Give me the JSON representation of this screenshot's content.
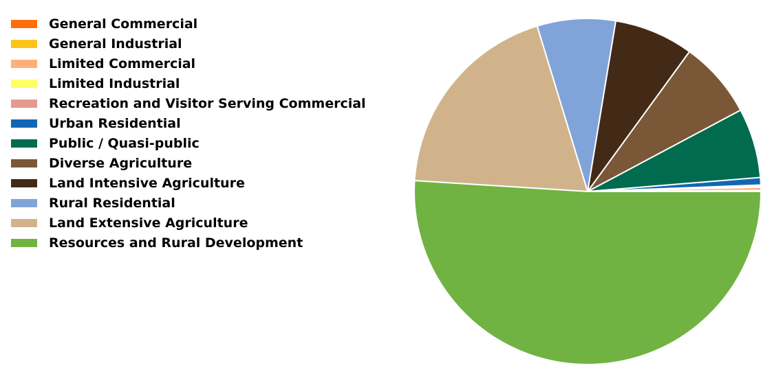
{
  "chart_data": {
    "type": "pie",
    "title": "",
    "legend_position": "top-left",
    "start_angle_deg": 0,
    "direction": "counterclockwise",
    "slice_edge_color": "#ffffff",
    "categories": [
      "General Commercial",
      "General Industrial",
      "Limited Commercial",
      "Limited Industrial",
      "Recreation and Visitor Serving Commercial",
      "Urban Residential",
      "Public / Quasi-public",
      "Diverse Agriculture",
      "Land Intensive Agriculture",
      "Rural Residential",
      "Land Extensive Agriculture",
      "Resources and Rural Development"
    ],
    "values": [
      0.05,
      0.05,
      0.3,
      0.05,
      0.15,
      0.7,
      6.5,
      7.2,
      7.4,
      7.3,
      19.3,
      51.0
    ],
    "colors": [
      "#ff6d0d",
      "#ffc41a",
      "#ffb07a",
      "#ffff66",
      "#e6998f",
      "#1366b3",
      "#006b4f",
      "#795737",
      "#432a17",
      "#80a3d9",
      "#d1b38b",
      "#70b342"
    ]
  }
}
